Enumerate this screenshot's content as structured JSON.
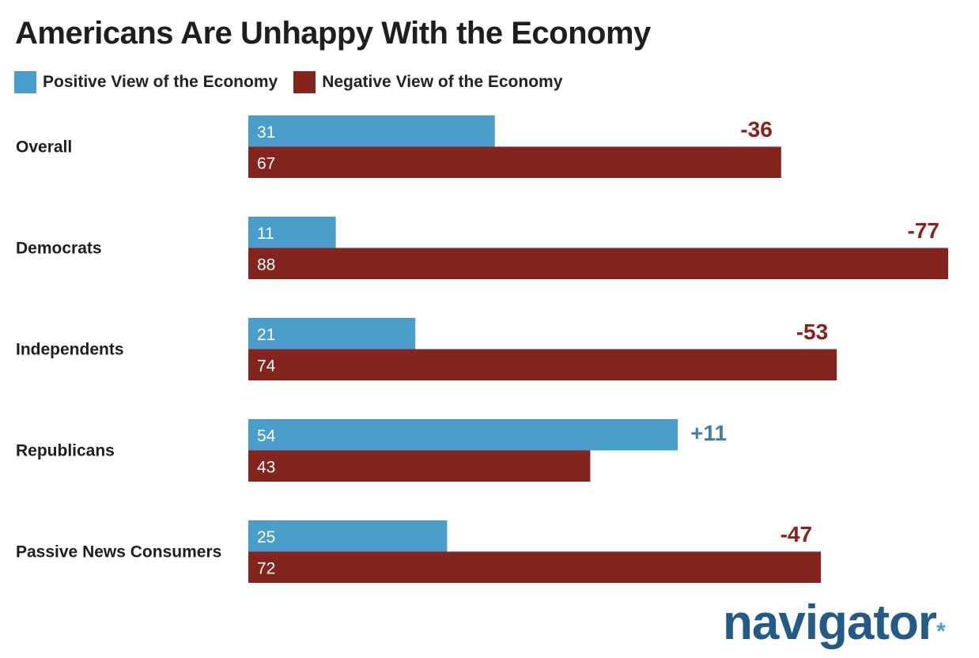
{
  "title": "Americans Are Unhappy With the Economy",
  "legend": [
    {
      "label": "Positive View of the Economy",
      "color": "#4a9fca"
    },
    {
      "label": "Negative View of the Economy",
      "color": "#83251c"
    }
  ],
  "colors": {
    "positive": "#4a9fca",
    "negative": "#83251c",
    "net_positive": "#3f7fa6",
    "net_negative": "#8b2219"
  },
  "logo": {
    "text": "navigator",
    "mark": "*"
  },
  "chart_data": {
    "type": "bar",
    "orientation": "horizontal",
    "title": "Americans Are Unhappy With the Economy",
    "categories": [
      "Overall",
      "Democrats",
      "Independents",
      "Republicans",
      "Passive News Consumers"
    ],
    "series": [
      {
        "name": "Positive View of the Economy",
        "values": [
          31,
          11,
          21,
          54,
          25
        ]
      },
      {
        "name": "Negative View of the Economy",
        "values": [
          67,
          88,
          74,
          43,
          72
        ]
      }
    ],
    "net_labels": [
      "-36",
      "-77",
      "-53",
      "+11",
      "-47"
    ],
    "xlim": [
      0,
      88
    ],
    "grid": false,
    "legend_placement": "top-left"
  }
}
